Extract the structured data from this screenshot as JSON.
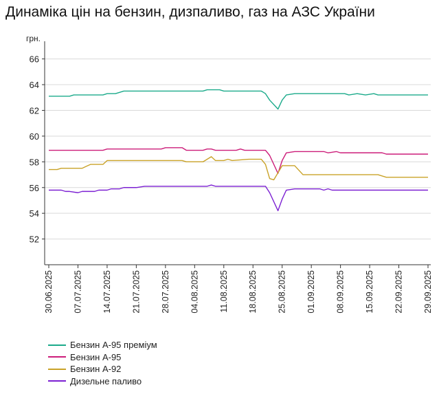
{
  "chart_data": {
    "type": "line",
    "title": "Динаміка цін на бензин, дизпаливо, газ на АЗС України",
    "ylabel": "грн.",
    "xlabel": "",
    "ylim": [
      50,
      67
    ],
    "yticks": [
      52,
      54,
      56,
      58,
      60,
      62,
      64,
      66
    ],
    "x_range": [
      "2025-06-30",
      "2025-09-29"
    ],
    "xtick_labels": [
      "30.06.2025",
      "07.07.2025",
      "14.07.2025",
      "21.07.2025",
      "28.07.2025",
      "04.08.2025",
      "11.08.2025",
      "18.08.2025",
      "25.08.2025",
      "01.09.2025",
      "08.09.2025",
      "15.09.2025",
      "22.09.2025",
      "29.09.2025"
    ],
    "grid": "horizontal",
    "legend_position": "bottom-left",
    "series": [
      {
        "name": "Бензин А-95 преміум",
        "color": "#1aaa8a",
        "points": [
          [
            "2025-06-30",
            63.1
          ],
          [
            "2025-07-05",
            63.1
          ],
          [
            "2025-07-06",
            63.2
          ],
          [
            "2025-07-13",
            63.2
          ],
          [
            "2025-07-14",
            63.3
          ],
          [
            "2025-07-16",
            63.3
          ],
          [
            "2025-07-18",
            63.5
          ],
          [
            "2025-07-30",
            63.5
          ],
          [
            "2025-07-31",
            63.5
          ],
          [
            "2025-08-06",
            63.5
          ],
          [
            "2025-08-07",
            63.6
          ],
          [
            "2025-08-10",
            63.6
          ],
          [
            "2025-08-11",
            63.5
          ],
          [
            "2025-08-20",
            63.5
          ],
          [
            "2025-08-21",
            63.3
          ],
          [
            "2025-08-22",
            62.8
          ],
          [
            "2025-08-24",
            62.1
          ],
          [
            "2025-08-25",
            62.8
          ],
          [
            "2025-08-26",
            63.2
          ],
          [
            "2025-08-28",
            63.3
          ],
          [
            "2025-09-09",
            63.3
          ],
          [
            "2025-09-10",
            63.2
          ],
          [
            "2025-09-12",
            63.3
          ],
          [
            "2025-09-14",
            63.2
          ],
          [
            "2025-09-16",
            63.3
          ],
          [
            "2025-09-17",
            63.2
          ],
          [
            "2025-09-29",
            63.2
          ]
        ]
      },
      {
        "name": "Бензин А-95",
        "color": "#cc1c79",
        "points": [
          [
            "2025-06-30",
            58.9
          ],
          [
            "2025-07-13",
            58.9
          ],
          [
            "2025-07-14",
            59.0
          ],
          [
            "2025-07-27",
            59.0
          ],
          [
            "2025-07-28",
            59.1
          ],
          [
            "2025-08-01",
            59.1
          ],
          [
            "2025-08-02",
            58.9
          ],
          [
            "2025-08-06",
            58.9
          ],
          [
            "2025-08-07",
            59.0
          ],
          [
            "2025-08-08",
            59.0
          ],
          [
            "2025-08-09",
            58.9
          ],
          [
            "2025-08-14",
            58.9
          ],
          [
            "2025-08-15",
            59.0
          ],
          [
            "2025-08-16",
            58.9
          ],
          [
            "2025-08-21",
            58.9
          ],
          [
            "2025-08-22",
            58.5
          ],
          [
            "2025-08-24",
            57.1
          ],
          [
            "2025-08-25",
            58.1
          ],
          [
            "2025-08-26",
            58.7
          ],
          [
            "2025-08-28",
            58.8
          ],
          [
            "2025-09-04",
            58.8
          ],
          [
            "2025-09-05",
            58.7
          ],
          [
            "2025-09-07",
            58.8
          ],
          [
            "2025-09-08",
            58.7
          ],
          [
            "2025-09-18",
            58.7
          ],
          [
            "2025-09-19",
            58.6
          ],
          [
            "2025-09-29",
            58.6
          ]
        ]
      },
      {
        "name": "Бензин А-92",
        "color": "#c9a227",
        "points": [
          [
            "2025-06-30",
            57.4
          ],
          [
            "2025-07-02",
            57.4
          ],
          [
            "2025-07-03",
            57.5
          ],
          [
            "2025-07-08",
            57.5
          ],
          [
            "2025-07-10",
            57.8
          ],
          [
            "2025-07-13",
            57.8
          ],
          [
            "2025-07-14",
            58.1
          ],
          [
            "2025-08-01",
            58.1
          ],
          [
            "2025-08-02",
            58.0
          ],
          [
            "2025-08-06",
            58.0
          ],
          [
            "2025-08-08",
            58.4
          ],
          [
            "2025-08-09",
            58.1
          ],
          [
            "2025-08-11",
            58.1
          ],
          [
            "2025-08-12",
            58.2
          ],
          [
            "2025-08-13",
            58.1
          ],
          [
            "2025-08-17",
            58.2
          ],
          [
            "2025-08-20",
            58.2
          ],
          [
            "2025-08-21",
            57.8
          ],
          [
            "2025-08-22",
            56.7
          ],
          [
            "2025-08-23",
            56.6
          ],
          [
            "2025-08-25",
            57.7
          ],
          [
            "2025-08-28",
            57.7
          ],
          [
            "2025-08-30",
            57.0
          ],
          [
            "2025-09-17",
            57.0
          ],
          [
            "2025-09-19",
            56.8
          ],
          [
            "2025-09-29",
            56.8
          ]
        ]
      },
      {
        "name": "Дизельне паливо",
        "color": "#7b1fd2",
        "points": [
          [
            "2025-06-30",
            55.8
          ],
          [
            "2025-07-03",
            55.8
          ],
          [
            "2025-07-04",
            55.7
          ],
          [
            "2025-07-05",
            55.7
          ],
          [
            "2025-07-07",
            55.6
          ],
          [
            "2025-07-08",
            55.7
          ],
          [
            "2025-07-11",
            55.7
          ],
          [
            "2025-07-12",
            55.8
          ],
          [
            "2025-07-14",
            55.8
          ],
          [
            "2025-07-15",
            55.9
          ],
          [
            "2025-07-17",
            55.9
          ],
          [
            "2025-07-18",
            56.0
          ],
          [
            "2025-07-21",
            56.0
          ],
          [
            "2025-07-23",
            56.1
          ],
          [
            "2025-08-07",
            56.1
          ],
          [
            "2025-08-08",
            56.2
          ],
          [
            "2025-08-09",
            56.1
          ],
          [
            "2025-08-21",
            56.1
          ],
          [
            "2025-08-22",
            55.6
          ],
          [
            "2025-08-24",
            54.2
          ],
          [
            "2025-08-25",
            55.1
          ],
          [
            "2025-08-26",
            55.8
          ],
          [
            "2025-08-28",
            55.9
          ],
          [
            "2025-09-03",
            55.9
          ],
          [
            "2025-09-04",
            55.8
          ],
          [
            "2025-09-05",
            55.9
          ],
          [
            "2025-09-06",
            55.8
          ],
          [
            "2025-09-29",
            55.8
          ]
        ]
      }
    ]
  }
}
